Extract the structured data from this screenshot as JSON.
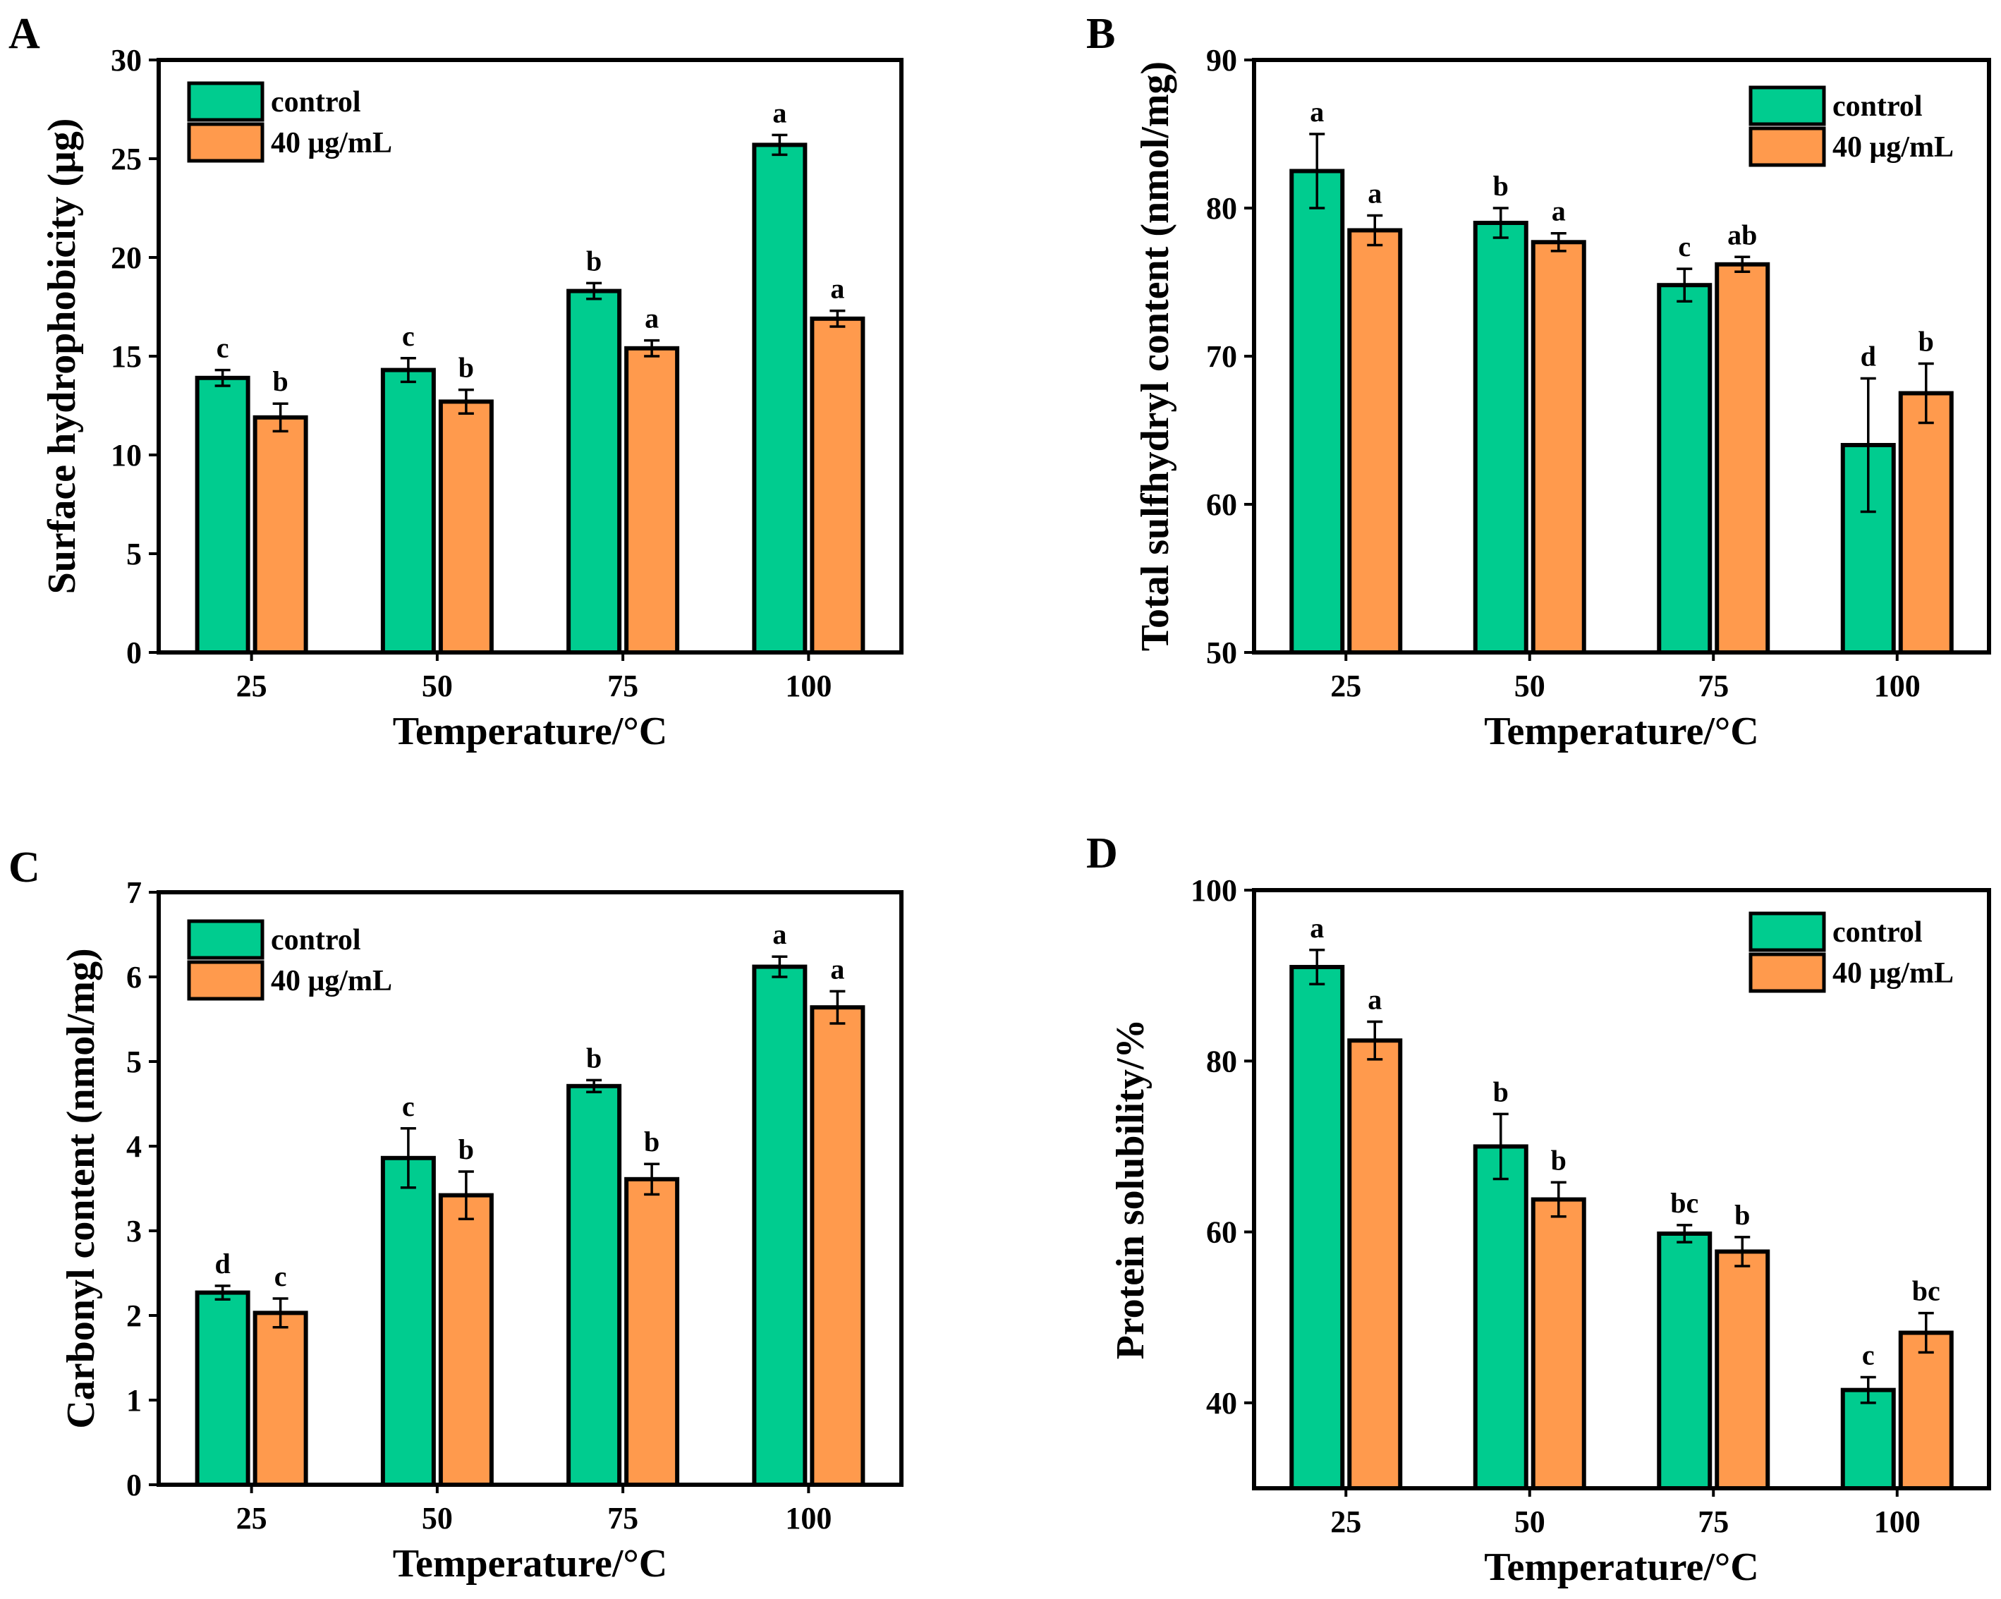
{
  "colors": {
    "control": "#00CC8F",
    "treated": "#FF9A4D",
    "stroke": "#000000"
  },
  "chart_data": [
    {
      "type": "bar",
      "panel": "A",
      "categories": [
        "25",
        "50",
        "75",
        "100"
      ],
      "xlabel": "Temperature/°C",
      "ylabel": "Surface hydrophobicity (μg)",
      "ylim": [
        0,
        30
      ],
      "yticks": [
        0,
        5,
        10,
        15,
        20,
        25,
        30
      ],
      "legend_position": "top-left",
      "series": [
        {
          "name": "control",
          "values": [
            13.9,
            14.3,
            18.3,
            25.7
          ],
          "errors": [
            0.4,
            0.6,
            0.4,
            0.5
          ],
          "labels": [
            "c",
            "c",
            "b",
            "a"
          ]
        },
        {
          "name": "40 μg/mL",
          "values": [
            11.9,
            12.7,
            15.4,
            16.9
          ],
          "errors": [
            0.7,
            0.6,
            0.4,
            0.4
          ],
          "labels": [
            "b",
            "b",
            "a",
            "a"
          ]
        }
      ]
    },
    {
      "type": "bar",
      "panel": "B",
      "categories": [
        "25",
        "50",
        "75",
        "100"
      ],
      "xlabel": "Temperature/°C",
      "ylabel": "Total sulfhydryl content (nmol/mg)",
      "ylim": [
        50,
        90
      ],
      "yticks": [
        50,
        60,
        70,
        80,
        90
      ],
      "legend_position": "top-right",
      "series": [
        {
          "name": "control",
          "values": [
            82.5,
            79.0,
            74.8,
            64.0
          ],
          "errors": [
            2.5,
            1.0,
            1.1,
            4.5
          ],
          "labels": [
            "a",
            "b",
            "c",
            "d"
          ]
        },
        {
          "name": "40 μg/mL",
          "values": [
            78.5,
            77.7,
            76.2,
            67.5
          ],
          "errors": [
            1.0,
            0.6,
            0.5,
            2.0
          ],
          "labels": [
            "a",
            "a",
            "ab",
            "b"
          ]
        }
      ]
    },
    {
      "type": "bar",
      "panel": "C",
      "categories": [
        "25",
        "50",
        "75",
        "100"
      ],
      "xlabel": "Temperature/°C",
      "ylabel": "Carbonyl content (nmol/mg)",
      "ylim": [
        0,
        7
      ],
      "yticks": [
        0,
        1,
        2,
        3,
        4,
        5,
        6,
        7
      ],
      "legend_position": "top-left",
      "series": [
        {
          "name": "control",
          "values": [
            2.27,
            3.86,
            4.71,
            6.12
          ],
          "errors": [
            0.08,
            0.35,
            0.07,
            0.12
          ],
          "labels": [
            "d",
            "c",
            "b",
            "a"
          ]
        },
        {
          "name": "40 μg/mL",
          "values": [
            2.03,
            3.42,
            3.61,
            5.64
          ],
          "errors": [
            0.17,
            0.28,
            0.18,
            0.19
          ],
          "labels": [
            "c",
            "b",
            "b",
            "a"
          ]
        }
      ]
    },
    {
      "type": "bar",
      "panel": "D",
      "categories": [
        "25",
        "50",
        "75",
        "100"
      ],
      "xlabel": "Temperature/°C",
      "ylabel": "Protein solubility/%",
      "ylim": [
        30,
        100
      ],
      "yticks": [
        40,
        60,
        80,
        100
      ],
      "legend_position": "top-right",
      "series": [
        {
          "name": "control",
          "values": [
            91.0,
            70.0,
            59.8,
            41.5
          ],
          "errors": [
            2.0,
            3.8,
            1.0,
            1.5
          ],
          "labels": [
            "a",
            "b",
            "bc",
            "c"
          ]
        },
        {
          "name": "40 μg/mL",
          "values": [
            82.4,
            63.8,
            57.7,
            48.2
          ],
          "errors": [
            2.2,
            2.0,
            1.7,
            2.3
          ],
          "labels": [
            "a",
            "b",
            "b",
            "bc"
          ]
        }
      ]
    }
  ]
}
